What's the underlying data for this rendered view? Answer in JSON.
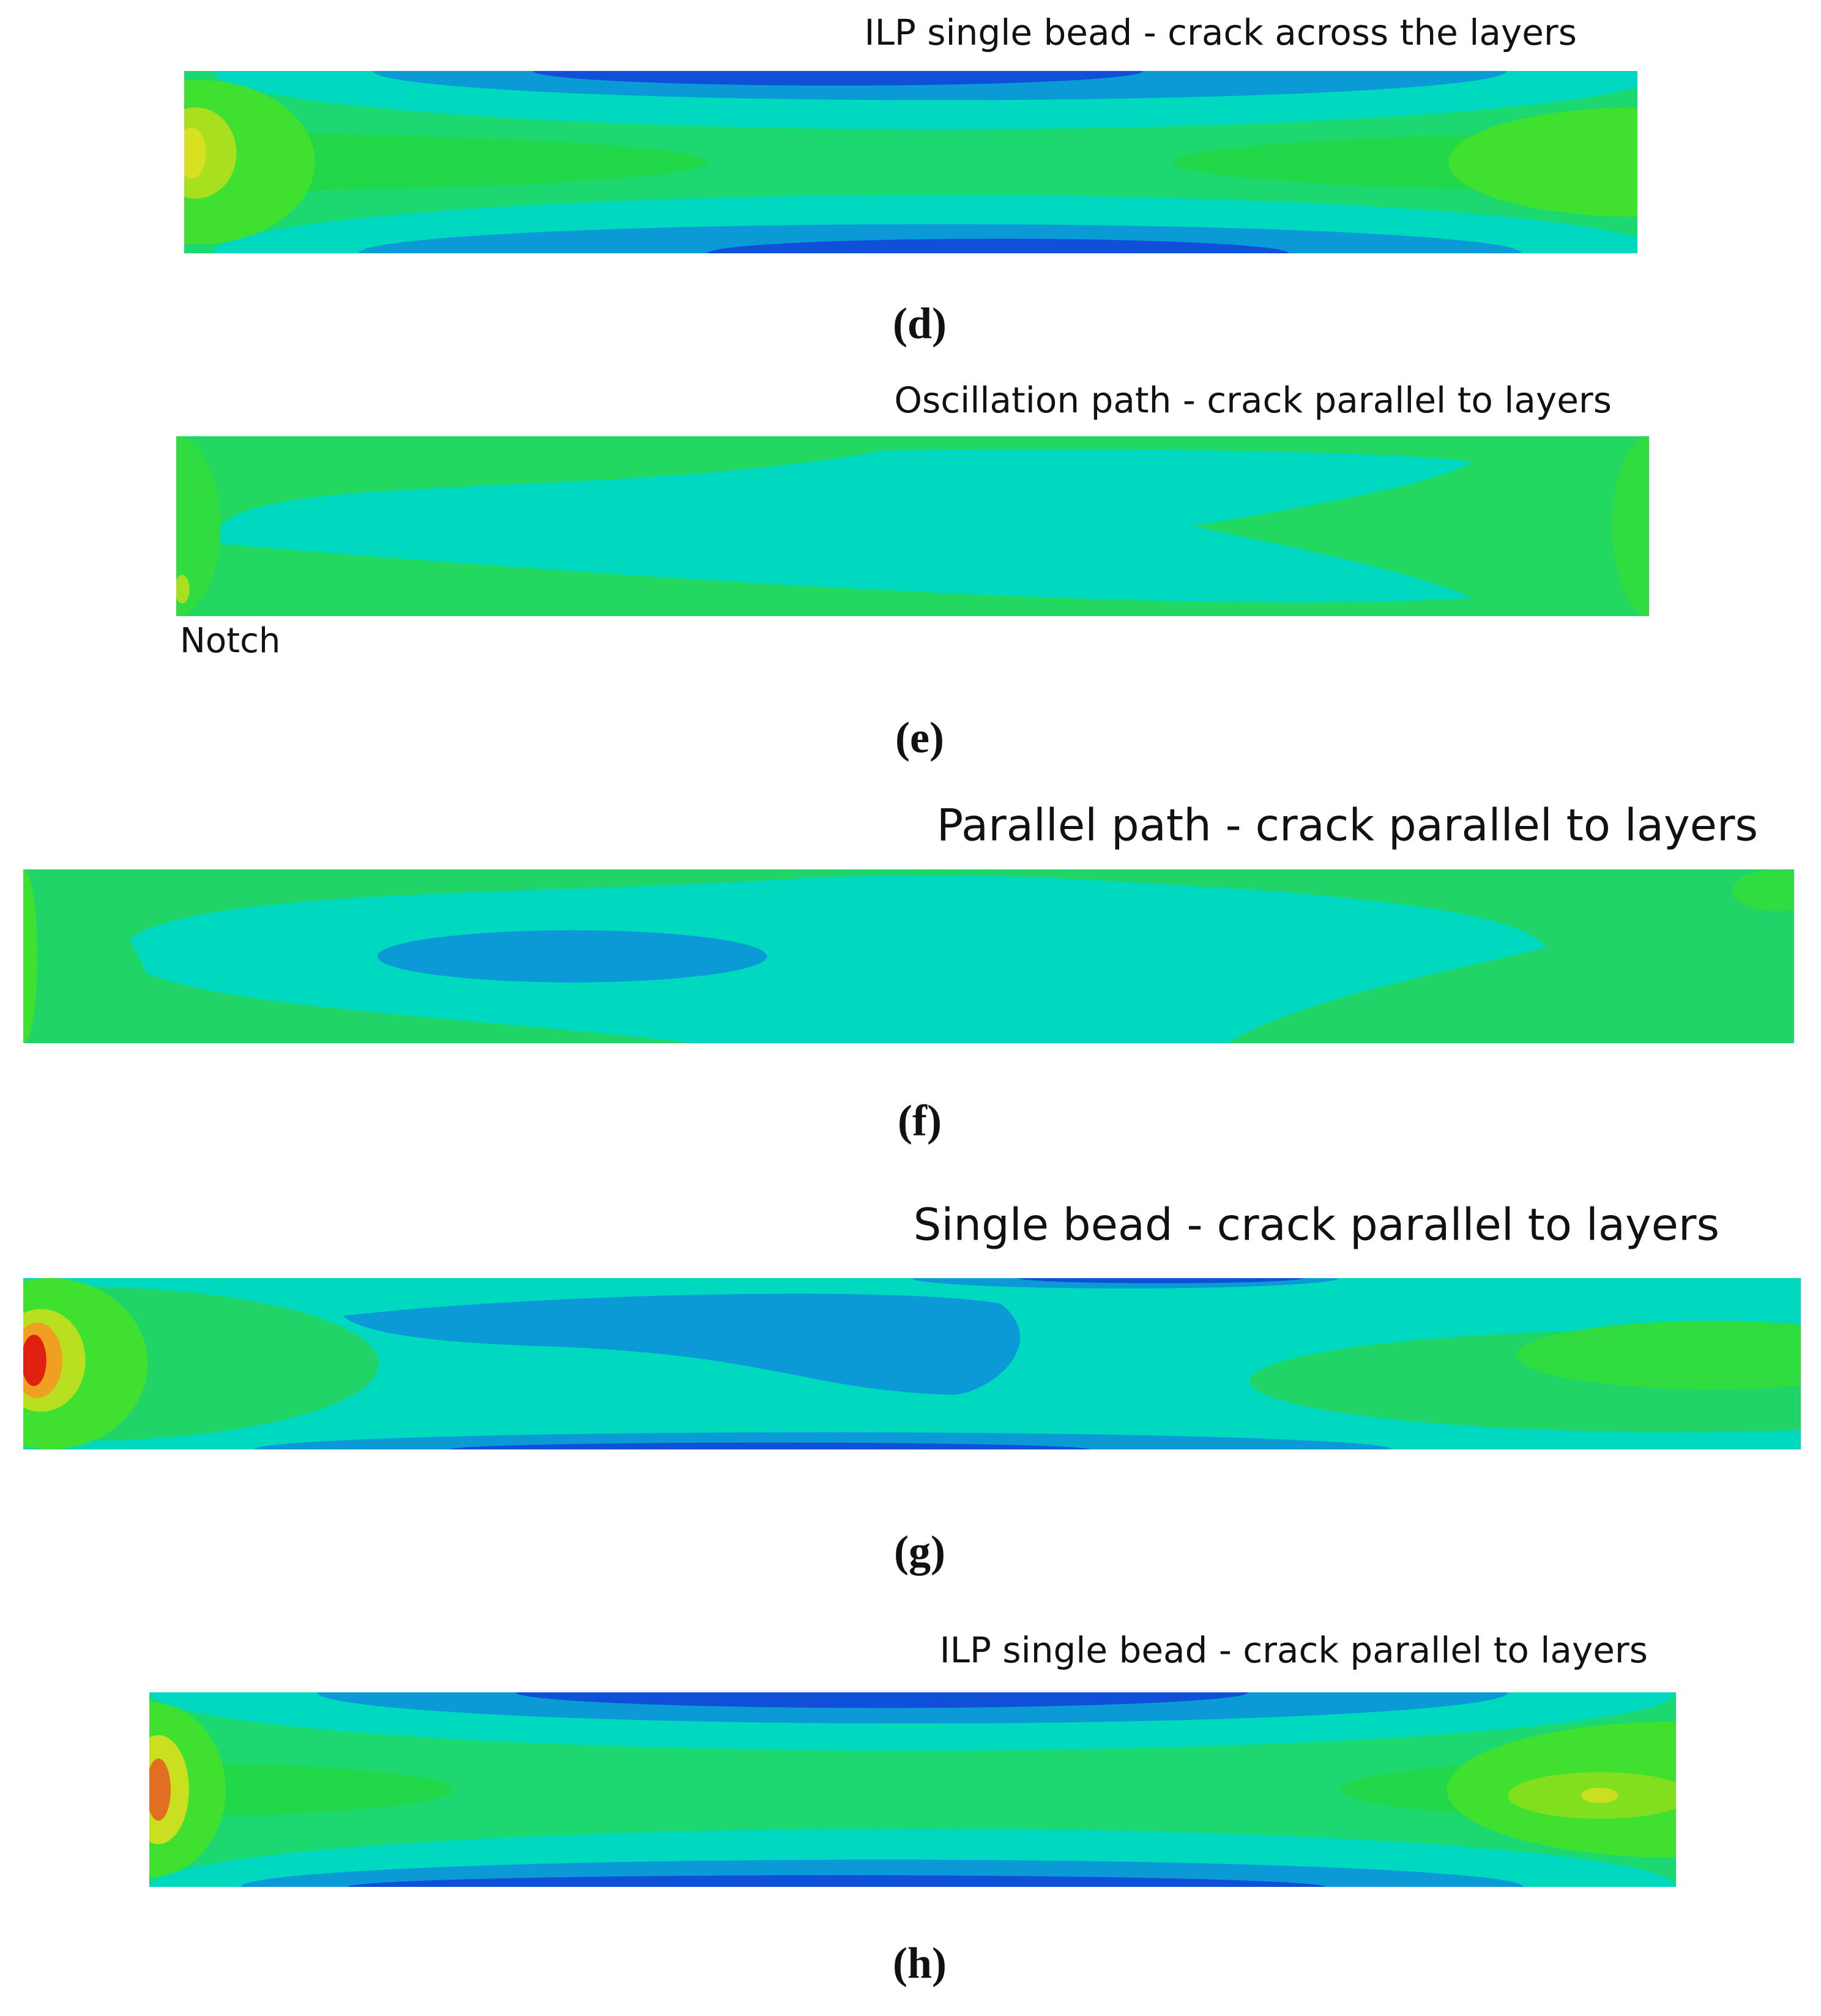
{
  "panels": [
    {
      "title": "ILP single bead - crack across the layers",
      "caption": "(d)"
    },
    {
      "title": "Oscillation path - crack parallel to layers",
      "annotation": "Notch",
      "caption": "(e)"
    },
    {
      "title": "Parallel path - crack parallel to layers",
      "caption": "(f)"
    },
    {
      "title": "Single bead - crack parallel to layers",
      "caption": "(g)"
    },
    {
      "title": "ILP single bead - crack parallel to layers",
      "caption": "(h)"
    }
  ]
}
